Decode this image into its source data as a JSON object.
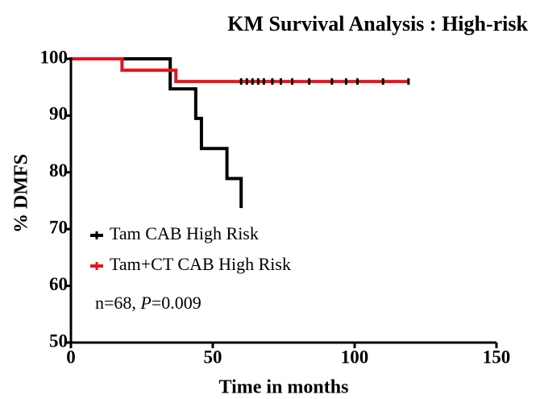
{
  "chart_data": {
    "type": "km-step",
    "title": "KM Survival Analysis : High-risk",
    "x_label": "Time in months",
    "y_label": "% DMFS",
    "xlim": [
      0,
      150
    ],
    "xticks": [
      0,
      50,
      100,
      150
    ],
    "ylim": [
      50,
      100
    ],
    "yticks": [
      50,
      60,
      70,
      80,
      90,
      100
    ],
    "series": [
      {
        "name": "Tam CAB High Risk",
        "color": "#000000",
        "x": [
          0,
          35,
          44,
          46,
          55,
          60
        ],
        "values": [
          100,
          94.7,
          89.5,
          84.2,
          78.9,
          73.7
        ]
      },
      {
        "name": "Tam+CT CAB High Risk",
        "color": "#e8141b",
        "x": [
          0,
          18,
          37,
          119
        ],
        "values": [
          100,
          98,
          96,
          96
        ],
        "censor_x": [
          60,
          62,
          64,
          66,
          68,
          71,
          74,
          78,
          84,
          92,
          97,
          101,
          110,
          119
        ],
        "censor_color": "#000000"
      }
    ],
    "annotation_parts": [
      "n=68, ",
      "P",
      "=0.009"
    ]
  }
}
